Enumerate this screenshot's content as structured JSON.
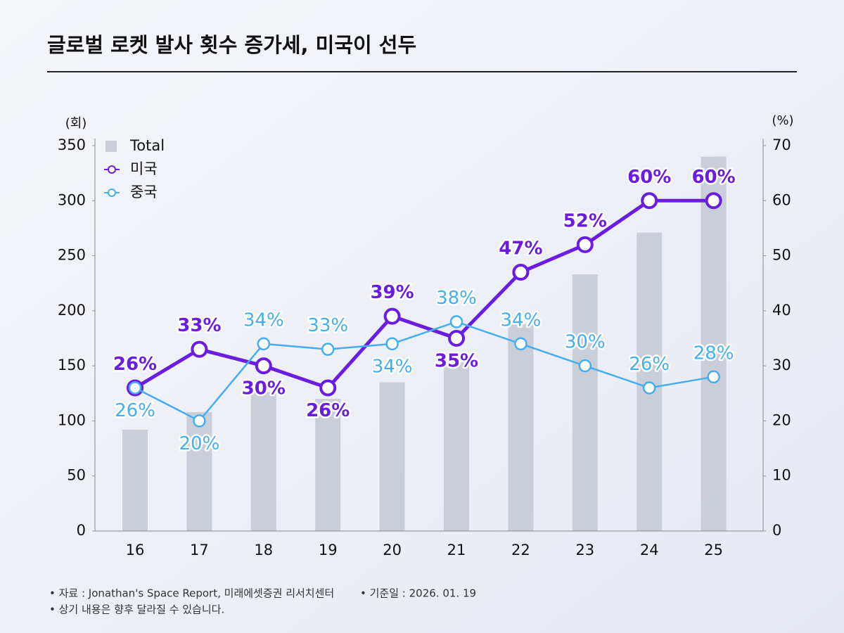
{
  "chart_data": {
    "type": "bar",
    "title": "글로벌 로켓 발사 횟수 증가세, 미국이 선두",
    "y_label": "(회)",
    "y2_label": "(%)",
    "categories": [
      "16",
      "17",
      "18",
      "19",
      "20",
      "21",
      "22",
      "23",
      "24",
      "25"
    ],
    "series": [
      {
        "name": "Total",
        "type": "bar",
        "color": "#c9ced8",
        "values": [
          92,
          108,
          126,
          120,
          135,
          153,
          188,
          233,
          271,
          340
        ]
      },
      {
        "name": "미국",
        "type": "line",
        "axis": "y2",
        "color": "#6a1de0",
        "values": [
          26,
          33,
          30,
          26,
          39,
          35,
          47,
          52,
          60,
          60
        ],
        "value_labels": [
          "26%",
          "33%",
          "30%",
          "26%",
          "39%",
          "35%",
          "47%",
          "52%",
          "60%",
          "60%"
        ]
      },
      {
        "name": "중국",
        "type": "line",
        "axis": "y2",
        "color": "#45adf0",
        "values": [
          26,
          20,
          34,
          33,
          34,
          38,
          34,
          30,
          26,
          28
        ],
        "value_labels": [
          "26%",
          "20%",
          "34%",
          "33%",
          "34%",
          "38%",
          "34%",
          "30%",
          "26%",
          "28%"
        ]
      }
    ],
    "ylim": [
      0,
      350
    ],
    "yticks": [
      0,
      50,
      100,
      150,
      200,
      250,
      300,
      350
    ],
    "y2lim": [
      0,
      70
    ],
    "y2ticks": [
      0,
      10,
      20,
      30,
      40,
      50,
      60,
      70
    ],
    "notes": [
      "• 자료 : Jonathan's Space Report, 미래에셋증권 리서치센터",
      "• 기준일 : 2026. 01. 19",
      "• 상기 내용은 향후 달라질 수 있습니다."
    ]
  }
}
